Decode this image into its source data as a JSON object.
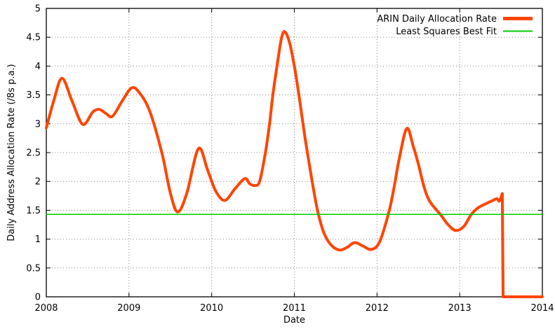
{
  "page": {
    "background": "#ffffff"
  },
  "chart_data": {
    "type": "line",
    "title": "",
    "xlabel": "Date",
    "ylabel": "Daily Address Allocation Rate (/8s p.a.)",
    "xlim": [
      2008,
      2014
    ],
    "ylim": [
      0,
      5
    ],
    "x_ticks": [
      2008,
      2009,
      2010,
      2011,
      2012,
      2013,
      2014
    ],
    "y_ticks": [
      0,
      0.5,
      1,
      1.5,
      2,
      2.5,
      3,
      3.5,
      4,
      4.5,
      5
    ],
    "grid": true,
    "grid_style": "dotted",
    "grid_color": "#878787",
    "axis_color": "#000000",
    "legend_position": "top-right-inside",
    "series": [
      {
        "name": "ARIN Daily Allocation Rate",
        "color": "#ff4500",
        "line_width": 4,
        "legend_line_width": 5,
        "smooth": true,
        "points": [
          [
            2008.0,
            2.93
          ],
          [
            2008.09,
            3.4
          ],
          [
            2008.19,
            3.79
          ],
          [
            2008.31,
            3.4
          ],
          [
            2008.44,
            2.99
          ],
          [
            2008.56,
            3.2
          ],
          [
            2008.64,
            3.25
          ],
          [
            2008.72,
            3.18
          ],
          [
            2008.8,
            3.13
          ],
          [
            2008.92,
            3.4
          ],
          [
            2009.03,
            3.62
          ],
          [
            2009.12,
            3.55
          ],
          [
            2009.25,
            3.22
          ],
          [
            2009.4,
            2.48
          ],
          [
            2009.5,
            1.8
          ],
          [
            2009.59,
            1.47
          ],
          [
            2009.7,
            1.8
          ],
          [
            2009.84,
            2.57
          ],
          [
            2009.95,
            2.2
          ],
          [
            2010.05,
            1.83
          ],
          [
            2010.16,
            1.67
          ],
          [
            2010.28,
            1.87
          ],
          [
            2010.4,
            2.05
          ],
          [
            2010.46,
            1.96
          ],
          [
            2010.52,
            1.93
          ],
          [
            2010.58,
            2.0
          ],
          [
            2010.65,
            2.5
          ],
          [
            2010.7,
            3.0
          ],
          [
            2010.74,
            3.5
          ],
          [
            2010.79,
            4.0
          ],
          [
            2010.84,
            4.45
          ],
          [
            2010.88,
            4.6
          ],
          [
            2010.94,
            4.42
          ],
          [
            2011.0,
            4.0
          ],
          [
            2011.06,
            3.45
          ],
          [
            2011.13,
            2.75
          ],
          [
            2011.21,
            2.05
          ],
          [
            2011.28,
            1.5
          ],
          [
            2011.36,
            1.1
          ],
          [
            2011.45,
            0.89
          ],
          [
            2011.55,
            0.81
          ],
          [
            2011.64,
            0.86
          ],
          [
            2011.73,
            0.94
          ],
          [
            2011.83,
            0.88
          ],
          [
            2011.93,
            0.82
          ],
          [
            2012.03,
            0.95
          ],
          [
            2012.14,
            1.45
          ],
          [
            2012.2,
            1.85
          ],
          [
            2012.27,
            2.4
          ],
          [
            2012.36,
            2.92
          ],
          [
            2012.44,
            2.6
          ],
          [
            2012.5,
            2.3
          ],
          [
            2012.57,
            1.9
          ],
          [
            2012.64,
            1.65
          ],
          [
            2012.77,
            1.42
          ],
          [
            2012.86,
            1.25
          ],
          [
            2012.95,
            1.15
          ],
          [
            2013.05,
            1.22
          ],
          [
            2013.14,
            1.43
          ],
          [
            2013.22,
            1.54
          ],
          [
            2013.31,
            1.61
          ],
          [
            2013.4,
            1.67
          ],
          [
            2013.45,
            1.7
          ],
          [
            2013.48,
            1.66
          ],
          [
            2013.515,
            1.79
          ]
        ],
        "tail_points": [
          [
            2013.525,
            0.0
          ],
          [
            2014.0,
            0.0
          ]
        ]
      },
      {
        "name": "Least Squares Best Fit",
        "color": "#00cc00",
        "line_width": 1.5,
        "legend_line_width": 2,
        "smooth": false,
        "points": [
          [
            2008.0,
            1.43
          ],
          [
            2014.0,
            1.43
          ]
        ]
      }
    ]
  }
}
